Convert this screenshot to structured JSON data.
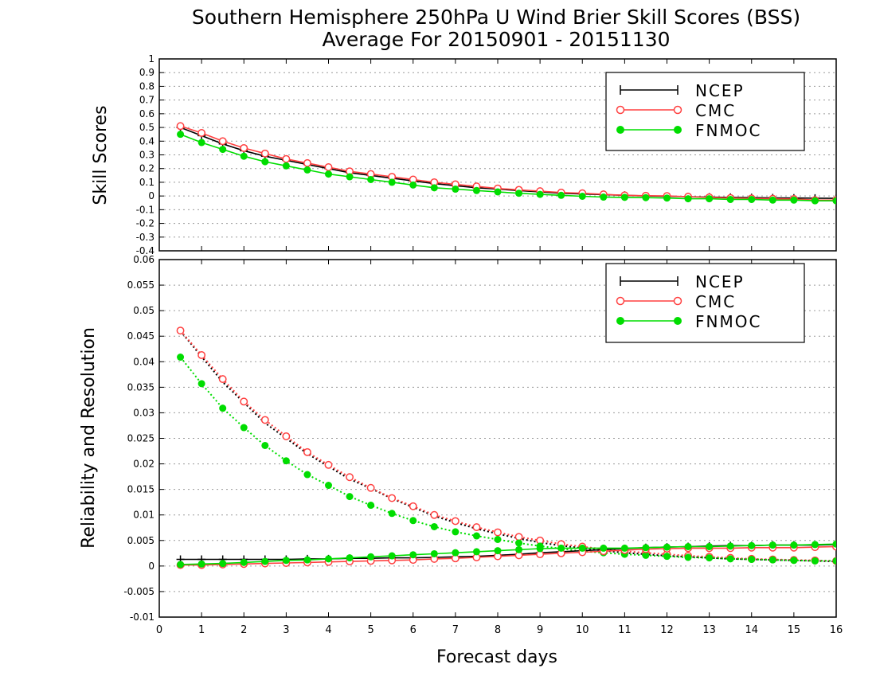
{
  "title_line1": "Southern Hemisphere 250hPa U Wind Brier Skill Scores (BSS)",
  "title_line2": "Average For 20150901 - 20151130",
  "xlabel": "Forecast days",
  "chart_data": [
    {
      "type": "line",
      "panel": "top",
      "ylabel": "Skill Scores",
      "xlim": [
        0,
        16
      ],
      "ylim": [
        -0.4,
        1
      ],
      "x_ticks": [
        0,
        1,
        2,
        3,
        4,
        5,
        6,
        7,
        8,
        9,
        10,
        11,
        12,
        13,
        14,
        15,
        16
      ],
      "y_ticks": [
        -0.4,
        -0.3,
        -0.2,
        -0.1,
        0,
        0.1,
        0.2,
        0.3,
        0.4,
        0.5,
        0.6,
        0.7,
        0.8,
        0.9,
        1
      ],
      "y_tick_labels": [
        "-0.4",
        "-0.3",
        "-0.2",
        "-0.1",
        "0",
        "0.1",
        "0.2",
        "0.3",
        "0.4",
        "0.5",
        "0.6",
        "0.7",
        "0.8",
        "0.9",
        "1"
      ],
      "grid": "horizontal dotted",
      "legend_position": "top-right",
      "x": [
        0.5,
        1,
        1.5,
        2,
        2.5,
        3,
        3.5,
        4,
        4.5,
        5,
        5.5,
        6,
        6.5,
        7,
        7.5,
        8,
        8.5,
        9,
        9.5,
        10,
        10.5,
        11,
        11.5,
        12,
        12.5,
        13,
        13.5,
        14,
        14.5,
        15,
        15.5,
        16
      ],
      "series": [
        {
          "name": "NCEP",
          "color": "#000000",
          "marker": "plus",
          "values": [
            0.5,
            0.44,
            0.38,
            0.33,
            0.29,
            0.26,
            0.23,
            0.2,
            0.17,
            0.15,
            0.13,
            0.11,
            0.09,
            0.075,
            0.06,
            0.05,
            0.04,
            0.03,
            0.02,
            0.015,
            0.01,
            0.005,
            0.0,
            -0.002,
            -0.005,
            -0.008,
            -0.01,
            -0.012,
            -0.014,
            -0.015,
            -0.016,
            -0.017
          ]
        },
        {
          "name": "CMC",
          "color": "#ff4040",
          "marker": "open-circle",
          "values": [
            0.51,
            0.46,
            0.4,
            0.35,
            0.31,
            0.27,
            0.24,
            0.21,
            0.18,
            0.16,
            0.14,
            0.12,
            0.1,
            0.085,
            0.07,
            0.055,
            0.045,
            0.035,
            0.025,
            0.02,
            0.012,
            0.005,
            0.002,
            0.0,
            -0.005,
            -0.01,
            -0.015,
            -0.018,
            -0.02,
            -0.022,
            -0.03,
            -0.03
          ]
        },
        {
          "name": "FNMOC",
          "color": "#00dd00",
          "marker": "filled-circle",
          "values": [
            0.45,
            0.39,
            0.34,
            0.29,
            0.25,
            0.22,
            0.19,
            0.16,
            0.14,
            0.12,
            0.1,
            0.08,
            0.06,
            0.05,
            0.04,
            0.03,
            0.02,
            0.012,
            0.005,
            -0.002,
            -0.008,
            -0.01,
            -0.012,
            -0.015,
            -0.02,
            -0.02,
            -0.025,
            -0.025,
            -0.03,
            -0.03,
            -0.035,
            -0.035
          ]
        }
      ]
    },
    {
      "type": "line",
      "panel": "bottom",
      "ylabel": "Reliability and Resolution",
      "xlim": [
        0,
        16
      ],
      "ylim": [
        -0.01,
        0.06
      ],
      "x_ticks": [
        0,
        1,
        2,
        3,
        4,
        5,
        6,
        7,
        8,
        9,
        10,
        11,
        12,
        13,
        14,
        15,
        16
      ],
      "x_tick_labels": [
        "0",
        "1",
        "2",
        "3",
        "4",
        "5",
        "6",
        "7",
        "8",
        "9",
        "10",
        "11",
        "12",
        "13",
        "14",
        "15",
        "16"
      ],
      "y_ticks": [
        -0.01,
        -0.005,
        0,
        0.005,
        0.01,
        0.015,
        0.02,
        0.025,
        0.03,
        0.035,
        0.04,
        0.045,
        0.05,
        0.055,
        0.06
      ],
      "y_tick_labels": [
        "-0.01",
        "-0.005",
        "0",
        "0.005",
        "0.01",
        "0.015",
        "0.02",
        "0.025",
        "0.03",
        "0.035",
        "0.04",
        "0.045",
        "0.05",
        "0.055",
        "0.06"
      ],
      "grid": "horizontal dotted",
      "legend_position": "top-right",
      "x": [
        0.5,
        1,
        1.5,
        2,
        2.5,
        3,
        3.5,
        4,
        4.5,
        5,
        5.5,
        6,
        6.5,
        7,
        7.5,
        8,
        8.5,
        9,
        9.5,
        10,
        10.5,
        11,
        11.5,
        12,
        12.5,
        13,
        13.5,
        14,
        14.5,
        15,
        15.5,
        16
      ],
      "series": [
        {
          "name": "NCEP",
          "color": "#000000",
          "marker": "plus",
          "component": "reliability",
          "values": [
            0.0013,
            0.0013,
            0.0013,
            0.0013,
            0.0013,
            0.0013,
            0.0014,
            0.0014,
            0.0015,
            0.0015,
            0.0016,
            0.0016,
            0.0017,
            0.0018,
            0.0019,
            0.0021,
            0.0023,
            0.0026,
            0.0028,
            0.003,
            0.0032,
            0.0034,
            0.0036,
            0.0037,
            0.0038,
            0.0039,
            0.004,
            0.004,
            0.0041,
            0.0041,
            0.0041,
            0.0042
          ]
        },
        {
          "name": "CMC",
          "color": "#ff4040",
          "marker": "open-circle",
          "component": "reliability",
          "values": [
            0.0002,
            0.0002,
            0.0003,
            0.0004,
            0.0005,
            0.0006,
            0.0007,
            0.0008,
            0.0009,
            0.001,
            0.0011,
            0.0012,
            0.0014,
            0.0015,
            0.0017,
            0.0019,
            0.0021,
            0.0023,
            0.0025,
            0.0027,
            0.0029,
            0.0031,
            0.0033,
            0.0034,
            0.0035,
            0.0035,
            0.0035,
            0.0036,
            0.0036,
            0.0036,
            0.0037,
            0.0038
          ]
        },
        {
          "name": "FNMOC",
          "color": "#00dd00",
          "marker": "filled-circle",
          "component": "reliability",
          "values": [
            0.0003,
            0.0004,
            0.0005,
            0.0007,
            0.0009,
            0.0011,
            0.0012,
            0.0014,
            0.0016,
            0.0018,
            0.002,
            0.0022,
            0.0024,
            0.0026,
            0.0028,
            0.003,
            0.0032,
            0.0034,
            0.0035,
            0.0035,
            0.0035,
            0.0035,
            0.0036,
            0.0037,
            0.0038,
            0.0038,
            0.0039,
            0.004,
            0.0041,
            0.0041,
            0.0042,
            0.0043
          ]
        },
        {
          "name": "NCEP",
          "color": "#000000",
          "marker": "none",
          "component": "resolution",
          "values": [
            0.046,
            0.041,
            0.036,
            0.032,
            0.028,
            0.025,
            0.022,
            0.0195,
            0.017,
            0.0152,
            0.0132,
            0.0115,
            0.0098,
            0.0085,
            0.0073,
            0.0063,
            0.0054,
            0.0046,
            0.004,
            0.0035,
            0.003,
            0.0026,
            0.0023,
            0.002,
            0.0018,
            0.0016,
            0.0014,
            0.0013,
            0.0012,
            0.0011,
            0.001,
            0.0009
          ]
        },
        {
          "name": "CMC",
          "color": "#ff4040",
          "marker": "open-circle",
          "component": "resolution",
          "values": [
            0.0461,
            0.0413,
            0.0366,
            0.0322,
            0.0286,
            0.0254,
            0.0223,
            0.0198,
            0.0174,
            0.0153,
            0.0133,
            0.0117,
            0.01,
            0.0088,
            0.0076,
            0.0066,
            0.0057,
            0.005,
            0.0043,
            0.0038,
            0.0033,
            0.0029,
            0.0026,
            0.0023,
            0.002,
            0.0018,
            0.0016,
            0.0014,
            0.0013,
            0.0012,
            0.0011,
            0.001
          ]
        },
        {
          "name": "FNMOC",
          "color": "#00dd00",
          "marker": "filled-circle",
          "component": "resolution",
          "values": [
            0.0409,
            0.0357,
            0.0309,
            0.0271,
            0.0236,
            0.0206,
            0.0179,
            0.0158,
            0.0136,
            0.0119,
            0.0103,
            0.0089,
            0.0077,
            0.0067,
            0.0059,
            0.0052,
            0.0045,
            0.0039,
            0.0034,
            0.0029,
            0.0026,
            0.0023,
            0.0021,
            0.0019,
            0.0017,
            0.0016,
            0.0014,
            0.0013,
            0.0012,
            0.0011,
            0.001,
            0.001
          ]
        }
      ]
    }
  ]
}
